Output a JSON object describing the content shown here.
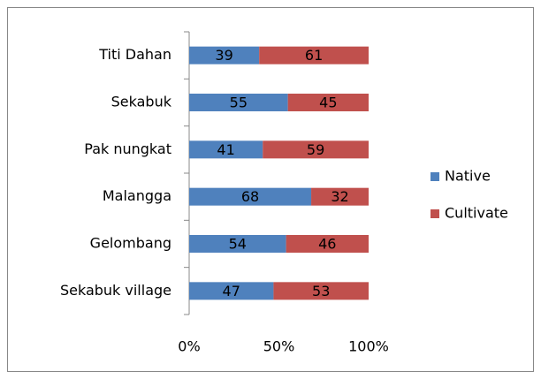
{
  "chart_data": {
    "type": "bar",
    "orientation": "horizontal",
    "stacked": true,
    "categories": [
      "Titi Dahan",
      "Sekabuk",
      "Pak nungkat",
      "Malangga",
      "Gelombang",
      "Sekabuk village"
    ],
    "series": [
      {
        "name": "Native",
        "color": "#4f81bd",
        "values": [
          39,
          55,
          41,
          68,
          54,
          47
        ]
      },
      {
        "name": "Cultivate",
        "color": "#c0504d",
        "values": [
          61,
          45,
          59,
          32,
          46,
          53
        ]
      }
    ],
    "xlim": [
      0,
      100
    ],
    "xticks": [
      {
        "value": 0,
        "label": "0%"
      },
      {
        "value": 50,
        "label": "50%"
      },
      {
        "value": 100,
        "label": "100%"
      }
    ],
    "legend": "right"
  }
}
